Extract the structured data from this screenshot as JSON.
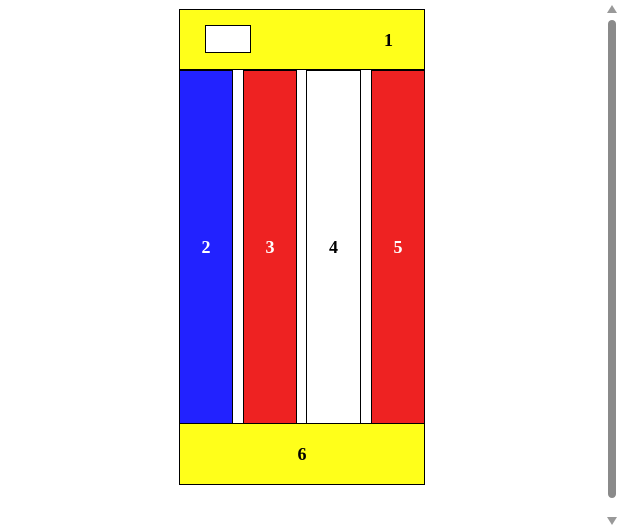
{
  "header": {
    "number": "1"
  },
  "columns": [
    {
      "number": "2",
      "color": "#2222ff"
    },
    {
      "number": "3",
      "color": "#ee2222"
    },
    {
      "number": "4",
      "color": "#ffffff"
    },
    {
      "number": "5",
      "color": "#ee2222"
    }
  ],
  "footer": {
    "number": "6"
  },
  "colors": {
    "header_footer": "#ffff1a",
    "scrollbar_thumb": "#8a8a8a"
  }
}
